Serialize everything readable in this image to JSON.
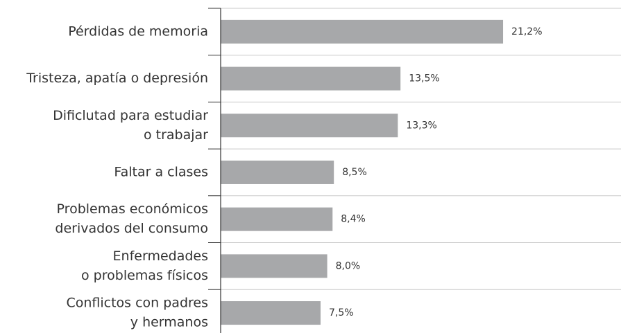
{
  "chart_data": {
    "type": "bar",
    "orientation": "horizontal",
    "categories": [
      [
        "Pérdidas de memoria"
      ],
      [
        "Tristeza, apatía o depresión"
      ],
      [
        "Dificlutad para estudiar",
        "o trabajar"
      ],
      [
        "Faltar a clases"
      ],
      [
        "Problemas económicos",
        "derivados del consumo"
      ],
      [
        "Enfermedades",
        "o problemas físicos"
      ],
      [
        "Conflictos con padres",
        "y hermanos"
      ]
    ],
    "values": [
      21.2,
      13.5,
      13.3,
      8.5,
      8.4,
      8.0,
      7.5
    ],
    "value_labels": [
      "21,2%",
      "13,5%",
      "13,3%",
      "8,5%",
      "8,4%",
      "8,0%",
      "7,5%"
    ],
    "color": "#a7a8aa"
  }
}
